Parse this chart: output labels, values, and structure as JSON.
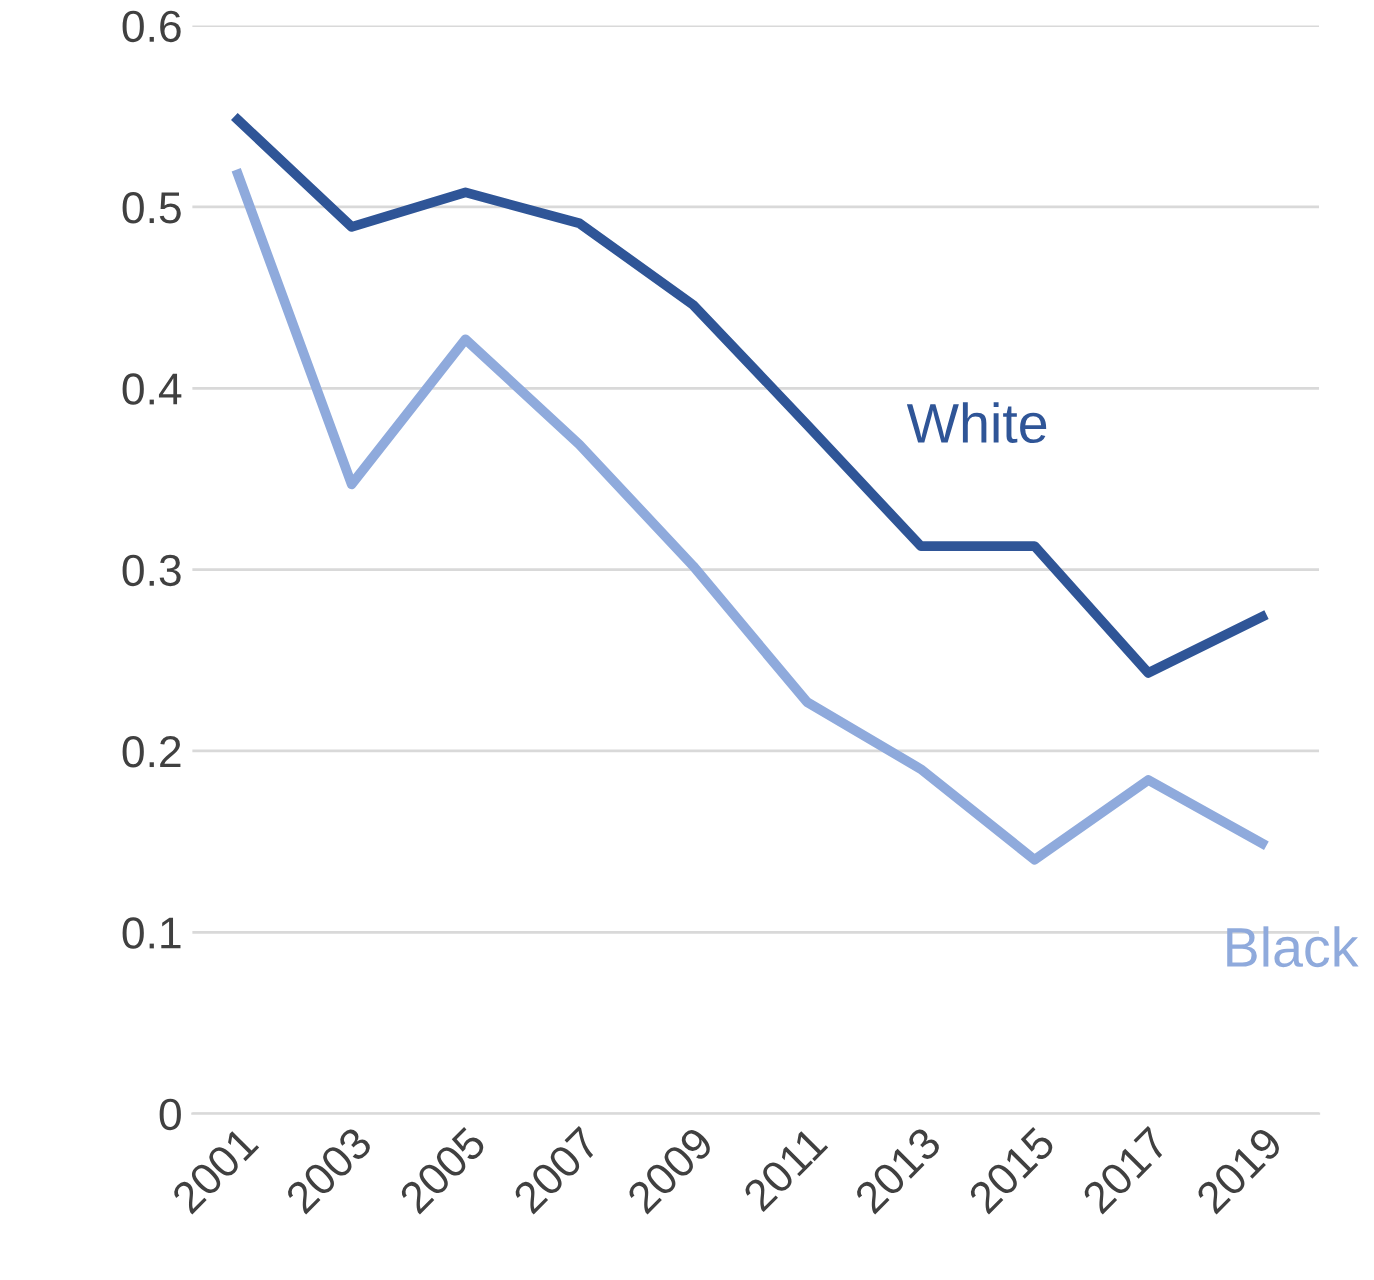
{
  "chart_data": {
    "type": "line",
    "categories": [
      "2001",
      "2003",
      "2005",
      "2007",
      "2009",
      "2011",
      "2013",
      "2015",
      "2017",
      "2019"
    ],
    "series": [
      {
        "name": "White",
        "color": "#2f5597",
        "values": [
          0.548,
          0.489,
          0.508,
          0.491,
          0.446,
          0.38,
          0.313,
          0.313,
          0.243,
          0.274
        ]
      },
      {
        "name": "Black",
        "color": "#8faadc",
        "values": [
          0.518,
          0.347,
          0.427,
          0.369,
          0.302,
          0.227,
          0.19,
          0.14,
          0.184,
          0.149
        ]
      }
    ],
    "ylim": [
      0,
      0.6
    ],
    "yticks": [
      0,
      0.1,
      0.2,
      0.3,
      0.4,
      0.5,
      0.6
    ],
    "grid": "y",
    "legend": false,
    "marker": "none",
    "line_style": "solid"
  }
}
